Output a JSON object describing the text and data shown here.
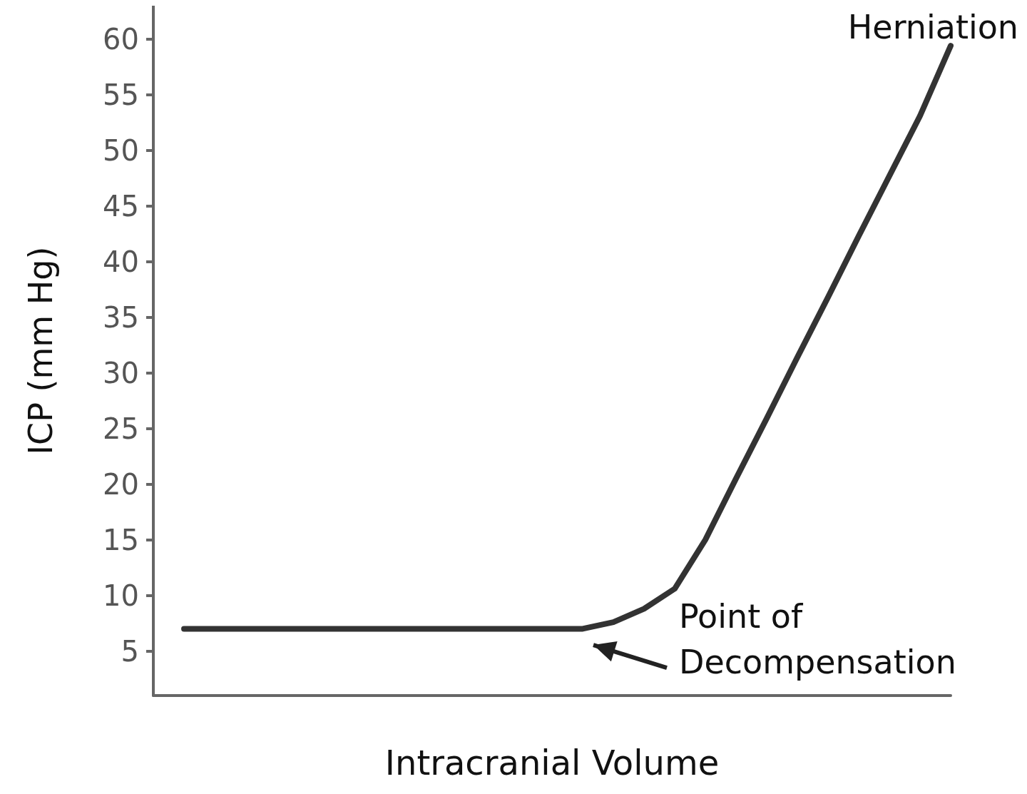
{
  "chart_data": {
    "type": "line",
    "xlabel": "Intracranial Volume",
    "ylabel": "ICP (mm Hg)",
    "categories": [
      null,
      null,
      null,
      null,
      null,
      null,
      null,
      null,
      null,
      null,
      null,
      null,
      null,
      null,
      null,
      null,
      null,
      null,
      null,
      null,
      null,
      null,
      null,
      null,
      null,
      null,
      null
    ],
    "values": [
      null,
      7,
      7,
      7,
      7,
      7,
      7,
      7,
      7,
      7,
      7,
      7,
      7,
      7,
      7,
      7.6,
      8.8,
      10.6,
      15,
      20.5,
      25.9,
      31.4,
      36.8,
      42.3,
      47.7,
      53.1,
      59.4
    ],
    "color": "#333333",
    "ylim": [
      1,
      63
    ],
    "yticks": [
      5,
      10,
      15,
      20,
      25,
      30,
      35,
      40,
      45,
      50,
      55,
      60
    ],
    "grid": false,
    "line_style": "solid",
    "annotations": [
      "Herniation",
      "Point of\nDecompensation"
    ]
  }
}
